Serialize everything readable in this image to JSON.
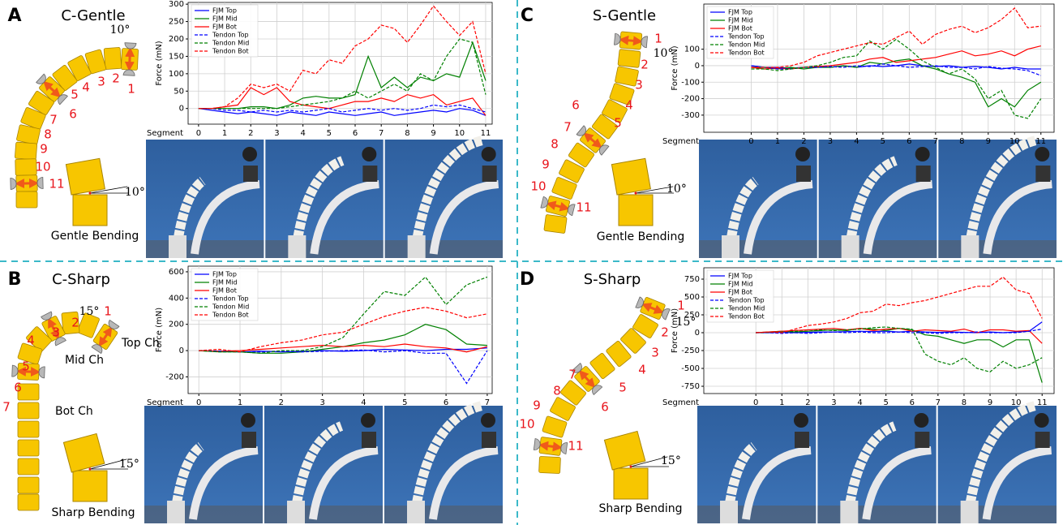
{
  "panels": [
    {
      "letter": "A",
      "title": "C-Gentle",
      "segments": [
        1,
        2,
        3,
        4,
        5,
        6,
        7,
        8,
        9,
        10,
        11
      ],
      "angle": "10°",
      "caption": "Gentle Bending",
      "inset_angle": "10°"
    },
    {
      "letter": "C",
      "title": "S-Gentle",
      "segments": [
        1,
        2,
        3,
        4,
        5,
        6,
        7,
        8,
        9,
        10,
        11
      ],
      "angle": "10°",
      "caption": "Gentle Bending",
      "inset_angle": "10°"
    },
    {
      "letter": "B",
      "title": "C-Sharp",
      "segments": [
        1,
        2,
        3,
        4,
        5,
        6,
        7
      ],
      "angle": "15°",
      "caption": "Sharp Bending",
      "inset_angle": "15°",
      "channels": [
        "Top Ch",
        "Mid Ch",
        "Bot Ch"
      ]
    },
    {
      "letter": "D",
      "title": "S-Sharp",
      "segments": [
        1,
        2,
        3,
        4,
        5,
        6,
        7,
        8,
        9,
        10,
        11
      ],
      "angle": "15°",
      "caption": "Sharp Bending",
      "inset_angle": "15°"
    }
  ],
  "chart_data": [
    {
      "type": "line",
      "xlabel": "Segment",
      "ylabel": "Force (mN)",
      "grid": true,
      "legend": "upper left",
      "xlim": [
        -0.4,
        11.25
      ],
      "ylim": [
        -45,
        305
      ],
      "xticks": [
        0,
        1,
        2,
        3,
        4,
        5,
        6,
        7,
        8,
        9,
        10,
        11
      ],
      "yticks": [
        0,
        50,
        100,
        150,
        200,
        250,
        300
      ],
      "x": [
        0,
        0.5,
        1,
        1.5,
        2,
        2.5,
        3,
        3.5,
        4,
        4.5,
        5,
        5.5,
        6,
        6.5,
        7,
        7.5,
        8,
        8.5,
        9,
        9.5,
        10,
        10.5,
        11
      ],
      "series": [
        {
          "name": "FJM Top",
          "color": "#0000ff",
          "style": "solid",
          "values": [
            0,
            -5,
            -10,
            -15,
            -10,
            -15,
            -20,
            -10,
            -15,
            -20,
            -10,
            -15,
            -20,
            -15,
            -10,
            -20,
            -15,
            -10,
            -5,
            -10,
            0,
            -5,
            -20
          ]
        },
        {
          "name": "FJM Mid",
          "color": "#008000",
          "style": "solid",
          "values": [
            0,
            0,
            0,
            0,
            5,
            5,
            0,
            10,
            30,
            35,
            30,
            30,
            40,
            150,
            60,
            90,
            60,
            90,
            80,
            100,
            90,
            190,
            80
          ]
        },
        {
          "name": "FJM Bot",
          "color": "#ff0000",
          "style": "solid",
          "values": [
            0,
            0,
            5,
            10,
            60,
            40,
            60,
            20,
            10,
            5,
            0,
            10,
            20,
            20,
            30,
            20,
            40,
            30,
            40,
            10,
            20,
            30,
            -20
          ]
        },
        {
          "name": "Tendon Top",
          "color": "#0000ff",
          "style": "dashed",
          "values": [
            0,
            0,
            -5,
            -5,
            -10,
            -5,
            -10,
            -5,
            -10,
            -5,
            0,
            -10,
            -5,
            0,
            -5,
            0,
            -5,
            0,
            10,
            5,
            10,
            0,
            -10
          ]
        },
        {
          "name": "Tendon Mid",
          "color": "#008000",
          "style": "dashed",
          "values": [
            0,
            0,
            0,
            0,
            0,
            0,
            0,
            5,
            10,
            15,
            20,
            30,
            50,
            30,
            50,
            70,
            50,
            100,
            80,
            150,
            200,
            190,
            40
          ]
        },
        {
          "name": "Tendon Bot",
          "color": "#ff0000",
          "style": "dashed",
          "values": [
            0,
            0,
            5,
            30,
            70,
            60,
            70,
            50,
            110,
            100,
            140,
            130,
            180,
            200,
            240,
            230,
            190,
            240,
            295,
            250,
            210,
            250,
            100
          ]
        }
      ]
    },
    {
      "type": "line",
      "xlabel": "Segment",
      "ylabel": "Force (mN)",
      "grid": true,
      "legend": "upper left",
      "xlim": [
        -1.8,
        11.5
      ],
      "ylim": [
        -404,
        374
      ],
      "xticks": [
        0,
        1,
        2,
        3,
        4,
        5,
        6,
        7,
        8,
        9,
        10,
        11
      ],
      "yticks": [
        -300,
        -200,
        -100,
        0,
        100
      ],
      "x": [
        0,
        0.5,
        1,
        1.5,
        2,
        2.5,
        3,
        3.5,
        4,
        4.5,
        5,
        5.5,
        6,
        6.5,
        7,
        7.5,
        8,
        8.5,
        9,
        9.5,
        10,
        10.5,
        11
      ],
      "series": [
        {
          "name": "FJM Top",
          "color": "#0000ff",
          "style": "solid",
          "values": [
            0,
            -10,
            -10,
            -15,
            -10,
            -5,
            -10,
            0,
            -10,
            0,
            -5,
            0,
            10,
            0,
            -5,
            0,
            -10,
            -5,
            -10,
            -20,
            -10,
            -20,
            -20
          ]
        },
        {
          "name": "FJM Mid",
          "color": "#008000",
          "style": "solid",
          "values": [
            -10,
            -10,
            -20,
            -10,
            -20,
            -10,
            -10,
            0,
            -10,
            20,
            10,
            30,
            40,
            0,
            -20,
            -50,
            -70,
            -100,
            -250,
            -200,
            -250,
            -150,
            -100
          ]
        },
        {
          "name": "FJM Bot",
          "color": "#ff0000",
          "style": "solid",
          "values": [
            -10,
            -20,
            -15,
            -20,
            -10,
            -5,
            0,
            10,
            20,
            40,
            50,
            20,
            30,
            40,
            50,
            70,
            90,
            60,
            70,
            90,
            60,
            100,
            120
          ]
        },
        {
          "name": "Tendon Top",
          "color": "#0000ff",
          "style": "dashed",
          "values": [
            0,
            -10,
            -20,
            -20,
            -10,
            -10,
            -5,
            -10,
            0,
            -5,
            10,
            0,
            -10,
            -5,
            0,
            -10,
            -10,
            -20,
            -5,
            -15,
            -20,
            -30,
            -60
          ]
        },
        {
          "name": "Tendon Mid",
          "color": "#008000",
          "style": "dashed",
          "values": [
            -20,
            -20,
            -30,
            -20,
            -10,
            0,
            20,
            50,
            60,
            150,
            100,
            160,
            100,
            30,
            -10,
            -50,
            -20,
            -80,
            -200,
            -150,
            -300,
            -320,
            -200
          ]
        },
        {
          "name": "Tendon Bot",
          "color": "#ff0000",
          "style": "dashed",
          "values": [
            -10,
            -10,
            -10,
            0,
            20,
            60,
            80,
            100,
            120,
            140,
            130,
            170,
            210,
            130,
            190,
            220,
            240,
            200,
            230,
            280,
            350,
            230,
            240
          ]
        }
      ]
    },
    {
      "type": "line",
      "xlabel": "Segment",
      "ylabel": "Force (mN)",
      "grid": true,
      "legend": "upper left",
      "xlim": [
        -0.26,
        7.12
      ],
      "ylim": [
        -327,
        643
      ],
      "xticks": [
        0,
        1,
        2,
        3,
        4,
        5,
        6,
        7
      ],
      "yticks": [
        -200,
        0,
        200,
        400,
        600
      ],
      "x": [
        0,
        0.5,
        1,
        1.5,
        2,
        2.5,
        3,
        3.5,
        4,
        4.5,
        5,
        5.5,
        6,
        6.5,
        7
      ],
      "series": [
        {
          "name": "FJM Top",
          "color": "#0000ff",
          "style": "solid",
          "values": [
            0,
            -5,
            -10,
            -5,
            -10,
            -5,
            0,
            -5,
            0,
            10,
            5,
            0,
            10,
            10,
            20
          ]
        },
        {
          "name": "FJM Mid",
          "color": "#008000",
          "style": "solid",
          "values": [
            0,
            -10,
            -10,
            -20,
            -20,
            -10,
            10,
            30,
            60,
            80,
            120,
            200,
            160,
            50,
            40
          ]
        },
        {
          "name": "FJM Bot",
          "color": "#ff0000",
          "style": "solid",
          "values": [
            0,
            -5,
            0,
            10,
            20,
            30,
            40,
            30,
            40,
            30,
            50,
            30,
            20,
            -10,
            30
          ]
        },
        {
          "name": "Tendon Top",
          "color": "#0000ff",
          "style": "dashed",
          "values": [
            0,
            -5,
            -10,
            -10,
            -5,
            -10,
            -5,
            0,
            5,
            -10,
            0,
            -20,
            -20,
            -250,
            0
          ]
        },
        {
          "name": "Tendon Mid",
          "color": "#008000",
          "style": "dashed",
          "values": [
            0,
            -10,
            -10,
            -20,
            0,
            0,
            30,
            100,
            280,
            450,
            420,
            560,
            350,
            500,
            560
          ]
        },
        {
          "name": "Tendon Bot",
          "color": "#ff0000",
          "style": "dashed",
          "values": [
            0,
            10,
            -10,
            30,
            60,
            80,
            120,
            140,
            200,
            260,
            300,
            330,
            300,
            250,
            280
          ]
        }
      ]
    },
    {
      "type": "line",
      "xlabel": "Segment",
      "ylabel": "Force (mN)",
      "grid": true,
      "legend": "upper left",
      "xlim": [
        -2,
        11.46
      ],
      "ylim": [
        -852,
        909
      ],
      "xticks": [
        0,
        1,
        2,
        3,
        4,
        5,
        6,
        7,
        8,
        9,
        10,
        11
      ],
      "yticks": [
        -750,
        -500,
        -250,
        0,
        250,
        500,
        750
      ],
      "x": [
        0,
        0.5,
        1,
        1.5,
        2,
        2.5,
        3,
        3.5,
        4,
        4.5,
        5,
        5.5,
        6,
        6.5,
        7,
        7.5,
        8,
        8.5,
        9,
        9.5,
        10,
        10.5,
        11
      ],
      "series": [
        {
          "name": "FJM Top",
          "color": "#0000ff",
          "style": "solid",
          "values": [
            0,
            0,
            5,
            0,
            5,
            10,
            10,
            15,
            20,
            15,
            20,
            10,
            20,
            10,
            5,
            10,
            5,
            0,
            10,
            0,
            10,
            20,
            150
          ]
        },
        {
          "name": "FJM Mid",
          "color": "#008000",
          "style": "solid",
          "values": [
            0,
            10,
            20,
            10,
            20,
            30,
            40,
            30,
            60,
            50,
            30,
            60,
            40,
            -30,
            -50,
            -100,
            -150,
            -100,
            -100,
            -200,
            -100,
            -100,
            -700
          ]
        },
        {
          "name": "FJM Bot",
          "color": "#ff0000",
          "style": "solid",
          "values": [
            0,
            10,
            20,
            30,
            40,
            50,
            60,
            40,
            60,
            30,
            50,
            60,
            20,
            40,
            30,
            20,
            50,
            0,
            40,
            40,
            20,
            30,
            -150
          ]
        },
        {
          "name": "Tendon Top",
          "color": "#0000ff",
          "style": "dashed",
          "values": [
            0,
            0,
            -10,
            0,
            -10,
            0,
            10,
            0,
            10,
            0,
            0,
            10,
            0,
            0,
            -10,
            0,
            0,
            10,
            0,
            0,
            0,
            20,
            50
          ]
        },
        {
          "name": "Tendon Mid",
          "color": "#008000",
          "style": "dashed",
          "values": [
            0,
            5,
            10,
            20,
            20,
            40,
            30,
            40,
            50,
            70,
            80,
            60,
            50,
            -300,
            -400,
            -450,
            -350,
            -500,
            -550,
            -400,
            -500,
            -450,
            -350
          ]
        },
        {
          "name": "Tendon Bot",
          "color": "#ff0000",
          "style": "dashed",
          "values": [
            0,
            10,
            0,
            50,
            100,
            120,
            150,
            200,
            280,
            300,
            400,
            380,
            420,
            450,
            500,
            550,
            600,
            650,
            650,
            780,
            600,
            550,
            200
          ]
        }
      ]
    }
  ]
}
